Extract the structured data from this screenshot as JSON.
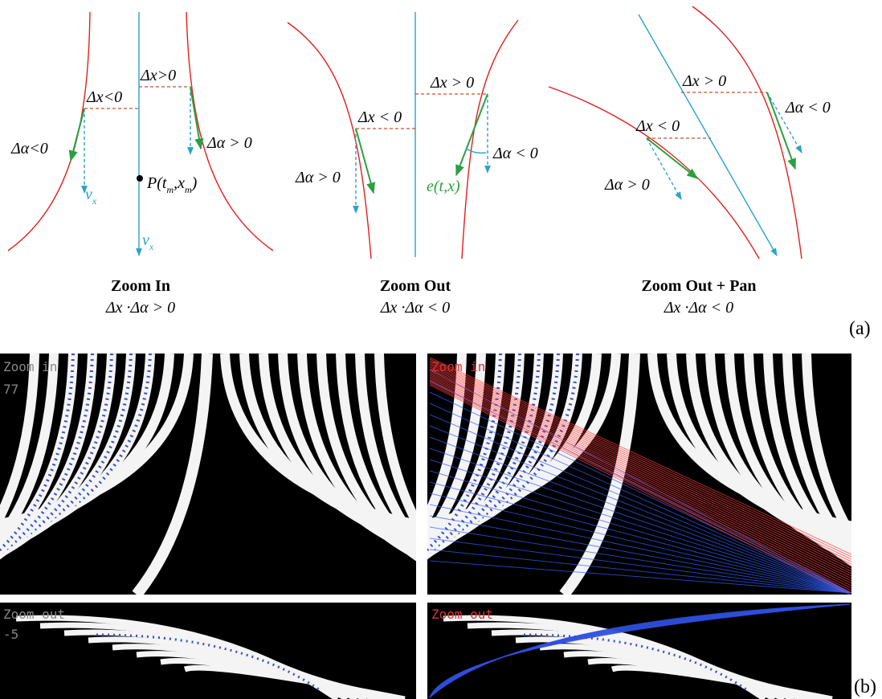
{
  "panel_a": {
    "label": "(a)",
    "zoom_in": {
      "title": "Zoom In",
      "formula": "Δx ·Δα > 0",
      "dx_neg": "Δx<0",
      "dx_pos": "Δx>0",
      "da_neg": "Δα<0",
      "da_pos": "Δα > 0",
      "velocity_small": {
        "text": "v",
        "subscript": "x"
      },
      "velocity_axis": {
        "text": "v",
        "subscript": "x"
      },
      "point": [
        "P(t",
        "m",
        ",x",
        "m",
        ")"
      ]
    },
    "zoom_out": {
      "title": "Zoom Out",
      "formula": "Δx ·Δα < 0",
      "dx_neg": "Δx < 0",
      "dx_pos": "Δx > 0",
      "da_pos": "Δα > 0",
      "da_neg": "Δα < 0",
      "edge": "e(t,x)"
    },
    "zoom_out_pan": {
      "title": "Zoom Out + Pan",
      "formula": "Δx ·Δα < 0",
      "dx_pos": "Δx > 0",
      "da_neg": "Δα < 0",
      "dx_neg": "Δx < 0",
      "da_pos": "Δα > 0"
    }
  },
  "panel_b": {
    "label": "(b)",
    "top_left": {
      "caption": "Zoom in",
      "counter": "77"
    },
    "top_right": {
      "caption": "Zoom in"
    },
    "bottom_left": {
      "caption": "Zoom out",
      "counter": "-5"
    },
    "bottom_right": {
      "caption": "Zoom out"
    }
  }
}
